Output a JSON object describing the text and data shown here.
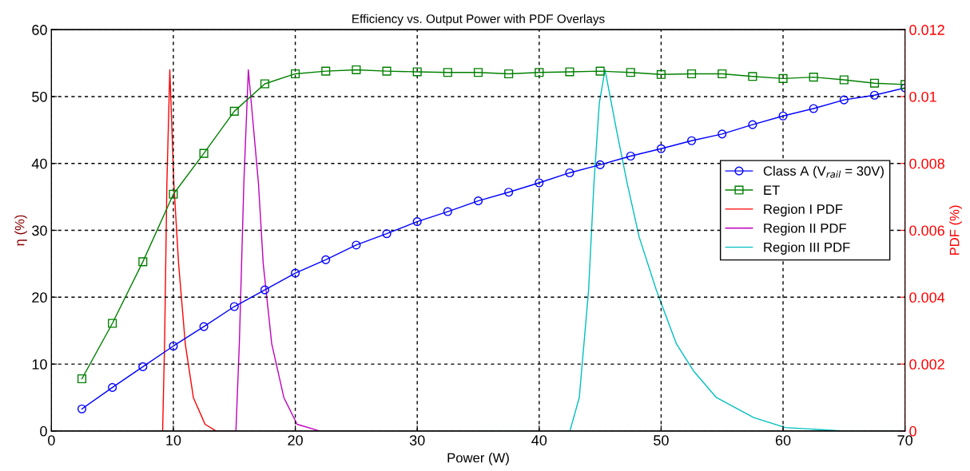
{
  "chart_data": {
    "type": "line",
    "title": "Efficiency vs. Output Power with PDF Overlays",
    "xlabel": "Power (W)",
    "ylabel": "η (%)",
    "y2label": "PDF (%)",
    "xlim": [
      0,
      70
    ],
    "xticks": [
      0,
      10,
      20,
      30,
      40,
      50,
      60,
      70
    ],
    "ylim": [
      0,
      60
    ],
    "yticks": [
      0,
      10,
      20,
      30,
      40,
      50,
      60
    ],
    "y2lim": [
      0,
      0.012
    ],
    "y2ticks": [
      0,
      0.002,
      0.004,
      0.006,
      0.008,
      0.01,
      0.012
    ],
    "grid": true,
    "legend": "right",
    "series": [
      {
        "name": "Class A (V$_{rail}$ = 30V)",
        "color": "#0000ff",
        "marker": "circle",
        "x": [
          2.5,
          5,
          7.5,
          10,
          12.5,
          15,
          17.5,
          20,
          22.5,
          25,
          27.5,
          30,
          32.5,
          35,
          37.5,
          40,
          42.5,
          45,
          47.5,
          50,
          52.5,
          55,
          57.5,
          60,
          62.5,
          65,
          67.5,
          70
        ],
        "values": [
          3.3,
          6.5,
          9.6,
          12.7,
          15.6,
          18.6,
          21.1,
          23.6,
          25.6,
          27.8,
          29.5,
          31.3,
          32.8,
          34.4,
          35.7,
          37.1,
          38.6,
          39.8,
          41.1,
          42.2,
          43.4,
          44.4,
          45.8,
          47.1,
          48.2,
          49.5,
          50.2,
          51.3
        ]
      },
      {
        "name": "ET",
        "color": "#008000",
        "marker": "square",
        "x": [
          2.5,
          5,
          7.5,
          10,
          12.5,
          15,
          17.5,
          20,
          22.5,
          25,
          27.5,
          30,
          32.5,
          35,
          37.5,
          40,
          42.5,
          45,
          47.5,
          50,
          52.5,
          55,
          57.5,
          60,
          62.5,
          65,
          67.5,
          70
        ],
        "values": [
          7.8,
          16.1,
          25.3,
          35.4,
          41.5,
          47.8,
          51.9,
          53.4,
          53.8,
          54.0,
          53.8,
          53.7,
          53.6,
          53.6,
          53.4,
          53.6,
          53.7,
          53.8,
          53.6,
          53.3,
          53.4,
          53.4,
          53.0,
          52.7,
          52.9,
          52.5,
          52.0,
          51.8
        ]
      },
      {
        "name": "Region I PDF",
        "color": "#ff0000",
        "marker": "none",
        "axis": "y2",
        "x": [
          8,
          9.12,
          9.28,
          9.47,
          9.71,
          10.04,
          10.43,
          10.98,
          11.64,
          12.6,
          13.5,
          15
        ],
        "values": [
          0,
          0,
          0.0026,
          0.0074,
          0.0108,
          0.0074,
          0.005,
          0.0026,
          0.001,
          0.0002,
          0,
          0
        ]
      },
      {
        "name": "Region II PDF",
        "color": "#bf00bf",
        "marker": "none",
        "axis": "y2",
        "x": [
          13,
          15.13,
          15.41,
          15.78,
          16.15,
          16.98,
          17.37,
          18.07,
          19.06,
          20.15,
          22,
          25
        ],
        "values": [
          0,
          0,
          0.0026,
          0.0074,
          0.0108,
          0.0074,
          0.005,
          0.0026,
          0.001,
          0.0002,
          0,
          0
        ]
      },
      {
        "name": "Region III PDF",
        "color": "#00bfbf",
        "marker": "none",
        "axis": "y2",
        "x": [
          35,
          42.52,
          43.29,
          44.05,
          44.49,
          44.93,
          45.4,
          46.34,
          47.22,
          48.2,
          49.62,
          51.26,
          52.65,
          54.53,
          57.6,
          60.2,
          65,
          70
        ],
        "values": [
          0,
          0,
          0.001,
          0.0042,
          0.0074,
          0.0098,
          0.0108,
          0.009,
          0.0074,
          0.0058,
          0.0042,
          0.0026,
          0.0018,
          0.001,
          0.0004,
          0.0001,
          0,
          0
        ]
      }
    ]
  }
}
